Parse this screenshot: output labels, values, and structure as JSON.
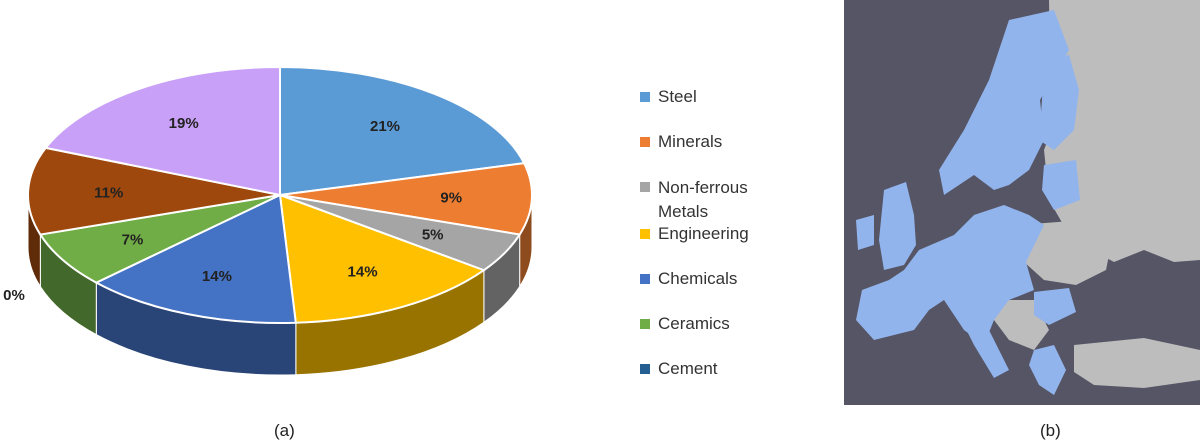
{
  "colors": {
    "Steel": "#5b9bd5",
    "Minerals": "#ed7d31",
    "Non-ferrous Metals": "#a5a5a5",
    "Engineering": "#ffc000",
    "Chemicals": "#4472c4",
    "Ceramics": "#70ad47",
    "Cement": "#255e91",
    "Other": "#c9a0f8",
    "Brown": "#9e480e",
    "map_sea": "#555566",
    "map_land_eu": "#92b4ec",
    "map_land_other": "#bdbdbd"
  },
  "chart_data": {
    "type": "pie",
    "style": "3d-exploded-slight",
    "slices": [
      {
        "label": "Steel",
        "value": 21,
        "display": "21%",
        "color": "#5b9bd5"
      },
      {
        "label": "Minerals",
        "value": 9,
        "display": "9%",
        "color": "#ed7d31"
      },
      {
        "label": "Non-ferrous Metals",
        "value": 5,
        "display": "5%",
        "color": "#a5a5a5"
      },
      {
        "label": "Engineering",
        "value": 14,
        "display": "14%",
        "color": "#ffc000"
      },
      {
        "label": "Chemicals",
        "value": 14,
        "display": "14%",
        "color": "#4472c4"
      },
      {
        "label": "Ceramics",
        "value": 7,
        "display": "7%",
        "color": "#70ad47"
      },
      {
        "label": "Cement",
        "value": 0,
        "display": "0%",
        "color": "#255e91"
      },
      {
        "label": "",
        "value": 11,
        "display": "11%",
        "color": "#9e480e"
      },
      {
        "label": "",
        "value": 19,
        "display": "19%",
        "color": "#c9a0f8"
      }
    ],
    "legend": [
      "Steel",
      "Minerals",
      "Non-ferrous Metals",
      "Engineering",
      "Chemicals",
      "Ceramics",
      "Cement"
    ],
    "legend_position": "right"
  },
  "captions": {
    "a": "(a)",
    "b": "(b)"
  },
  "legend_text": {
    "steel": "Steel",
    "minerals": "Minerals",
    "nonferrous": "Non-ferrous Metals",
    "engineering": "Engineering",
    "chemicals": "Chemicals",
    "ceramics": "Ceramics",
    "cement": "Cement"
  }
}
